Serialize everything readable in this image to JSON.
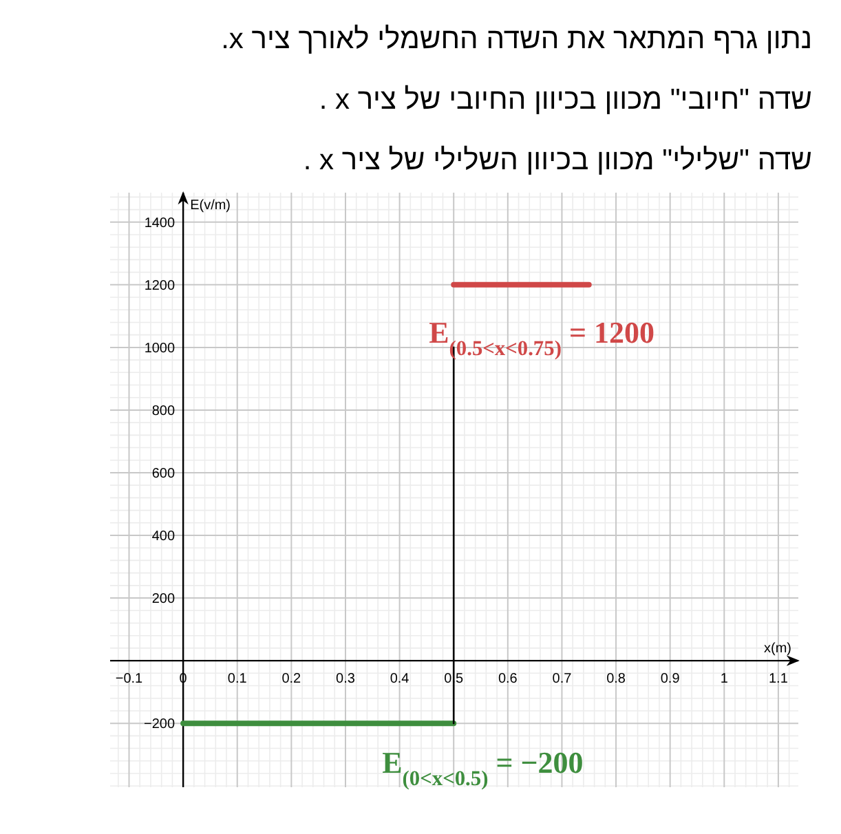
{
  "chart_data": {
    "type": "line",
    "title": "נתון גרף המתאר את השדה החשמלי לאורך ציר x.",
    "xlabel": "x(m)",
    "ylabel": "E(v/m)",
    "series": [
      {
        "color": "#3e8e3e",
        "x": [
          0,
          0.5
        ],
        "values": [
          -200,
          -200
        ]
      },
      {
        "color": "#d04848",
        "x": [
          0.5,
          0.75
        ],
        "values": [
          1200,
          1200
        ]
      },
      {
        "color": "#000000",
        "x": [
          0.5,
          0.5
        ],
        "values": [
          -200,
          1000
        ]
      }
    ],
    "annotations": [
      {
        "text": "E$_{(0<x<0.5)}$ = −200",
        "x": 0.5,
        "y": -200
      },
      {
        "text": "E$_{(0.5<x<0.75)}$ = 1200",
        "x": 0.5,
        "y": 1200
      },
      "שדה \"חיובי\" מכוון בכיוון החיובי של ציר x .",
      "שדה \"שלילי\" מכוון בכיוון השלילי של ציר x ."
    ],
    "xlim": [
      -0.135,
      1.137
    ],
    "ylim": [
      -404,
      1494
    ],
    "xticks": [
      -0.1,
      0,
      0.1,
      0.2,
      0.3,
      0.4,
      0.5,
      0.6,
      0.7,
      0.8,
      0.9,
      1,
      1.1
    ],
    "yticks": [
      -200,
      {
        "value": 0,
        "label": null
      },
      200,
      400,
      600,
      800,
      1000,
      1200,
      1400
    ],
    "grid": true,
    "marker": "none"
  }
}
